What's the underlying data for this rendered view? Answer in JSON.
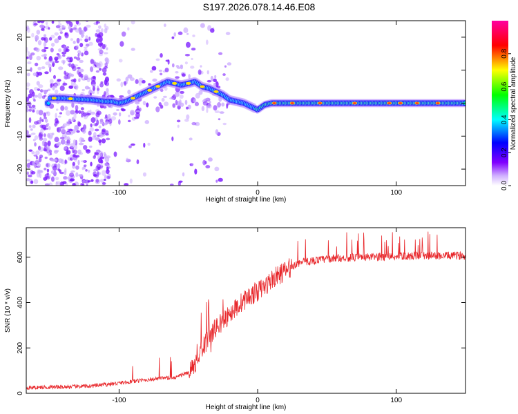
{
  "title": "S197.2026.078.14.46.E08",
  "chart_data": [
    {
      "type": "heatmap",
      "name": "spectrogram",
      "xlabel": "Height of straight line (km)",
      "ylabel": "Frequency (Hz)",
      "xlim": [
        -167,
        150
      ],
      "ylim": [
        -25,
        25
      ],
      "xticks": [
        -100,
        0,
        100
      ],
      "yticks": [
        -20,
        -10,
        0,
        10,
        20
      ],
      "ridge": [
        [
          -150,
          1.5
        ],
        [
          -140,
          1.5
        ],
        [
          -130,
          1.2
        ],
        [
          -120,
          1.0
        ],
        [
          -110,
          0.5
        ],
        [
          -105,
          0.5
        ],
        [
          -100,
          0.0
        ],
        [
          -95,
          0.5
        ],
        [
          -90,
          1.5
        ],
        [
          -85,
          2.5
        ],
        [
          -80,
          3.5
        ],
        [
          -75,
          4.5
        ],
        [
          -70,
          5.5
        ],
        [
          -65,
          6.5
        ],
        [
          -60,
          6.0
        ],
        [
          -55,
          5.5
        ],
        [
          -50,
          6.0
        ],
        [
          -45,
          6.5
        ],
        [
          -40,
          5.0
        ],
        [
          -35,
          4.5
        ],
        [
          -30,
          3.5
        ],
        [
          -25,
          2.5
        ],
        [
          -20,
          1.0
        ],
        [
          -15,
          0.5
        ],
        [
          -10,
          0.0
        ],
        [
          -5,
          -1.0
        ],
        [
          0,
          -2.0
        ],
        [
          5,
          -0.5
        ],
        [
          10,
          0.0
        ],
        [
          20,
          0.0
        ],
        [
          40,
          0.0
        ],
        [
          60,
          0.0
        ],
        [
          80,
          0.0
        ],
        [
          100,
          0.0
        ],
        [
          120,
          0.0
        ],
        [
          150,
          0.0
        ]
      ],
      "colorbar": {
        "label": "Normalized spectral amplitude",
        "range": [
          0.0,
          1.0
        ],
        "ticks": [
          "0.0",
          "0.2",
          "0.4",
          "0.6",
          "0.8"
        ],
        "colors": [
          "#ffffff",
          "#8000ff",
          "#0000ff",
          "#00ffff",
          "#00ff00",
          "#ffff00",
          "#ff0000",
          "#ff00a0"
        ]
      }
    },
    {
      "type": "line",
      "name": "snr",
      "xlabel": "Height of straight line (km)",
      "ylabel": "SNR (10 * v/v)",
      "xlim": [
        -167,
        150
      ],
      "ylim": [
        0,
        730
      ],
      "xticks": [
        -100,
        0,
        100
      ],
      "yticks": [
        0,
        200,
        400,
        600
      ],
      "color": "#e8262a",
      "envelope": [
        [
          -167,
          25
        ],
        [
          -140,
          28
        ],
        [
          -120,
          32
        ],
        [
          -100,
          45
        ],
        [
          -80,
          60
        ],
        [
          -60,
          70
        ],
        [
          -50,
          90
        ],
        [
          -45,
          130
        ],
        [
          -40,
          200
        ],
        [
          -35,
          250
        ],
        [
          -30,
          290
        ],
        [
          -25,
          320
        ],
        [
          -20,
          350
        ],
        [
          -15,
          380
        ],
        [
          -10,
          410
        ],
        [
          -5,
          430
        ],
        [
          0,
          450
        ],
        [
          5,
          470
        ],
        [
          10,
          500
        ],
        [
          15,
          520
        ],
        [
          20,
          540
        ],
        [
          25,
          560
        ],
        [
          30,
          575
        ],
        [
          40,
          585
        ],
        [
          50,
          592
        ],
        [
          60,
          596
        ],
        [
          70,
          598
        ],
        [
          80,
          600
        ],
        [
          90,
          602
        ],
        [
          100,
          604
        ],
        [
          110,
          605
        ],
        [
          120,
          606
        ],
        [
          130,
          606
        ],
        [
          140,
          607
        ],
        [
          150,
          607
        ]
      ]
    }
  ]
}
